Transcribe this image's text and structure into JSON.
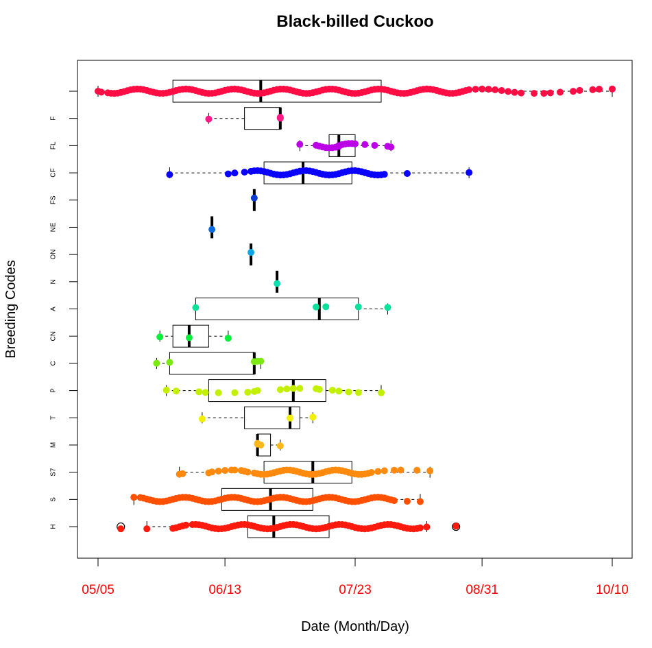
{
  "chart_data": {
    "type": "boxplot",
    "title": "Black-billed Cuckoo",
    "xlabel": "Date (Month/Day)",
    "ylabel": "Breeding Codes",
    "x_tick_labels": [
      "05/05",
      "06/13",
      "07/23",
      "08/31",
      "10/10"
    ],
    "x_tick_days": [
      0,
      39,
      79,
      118,
      158
    ],
    "x_tick_color": "#ff0000",
    "xlim_days": [
      -6,
      164
    ],
    "orientation": "horizontal",
    "grid": false,
    "legend": "none",
    "categories": [
      "",
      "F",
      "FL",
      "CF",
      "FS",
      "NE",
      "ON",
      "N",
      "A",
      "CN",
      "C",
      "P",
      "T",
      "M",
      "S7",
      "S",
      "H"
    ],
    "series": [
      {
        "code": "",
        "color": "#ff0d44",
        "stats": {
          "whisker_low": 0,
          "q1": 23,
          "median": 50,
          "q3": 87,
          "whisker_high": 158
        },
        "points": [
          0,
          1,
          3,
          4,
          5,
          6,
          7,
          8,
          9,
          10,
          11,
          12,
          13,
          14,
          15,
          16,
          17,
          18,
          19,
          20,
          21,
          22,
          23,
          24,
          25,
          26,
          27,
          28,
          29,
          30,
          31,
          32,
          33,
          34,
          35,
          36,
          37,
          38,
          39,
          40,
          41,
          42,
          43,
          44,
          45,
          46,
          47,
          48,
          49,
          50,
          51,
          52,
          53,
          54,
          55,
          56,
          57,
          58,
          59,
          60,
          61,
          62,
          63,
          64,
          65,
          66,
          67,
          68,
          69,
          70,
          71,
          72,
          73,
          74,
          75,
          76,
          77,
          78,
          79,
          80,
          81,
          82,
          83,
          84,
          85,
          86,
          87,
          88,
          89,
          90,
          91,
          92,
          93,
          94,
          95,
          96,
          97,
          98,
          99,
          100,
          101,
          102,
          103,
          104,
          105,
          106,
          107,
          108,
          109,
          110,
          111,
          112,
          113,
          114,
          116,
          118,
          120,
          122,
          124,
          126,
          128,
          130,
          134,
          137,
          139,
          142,
          146,
          148,
          152,
          154,
          158
        ]
      },
      {
        "code": "F",
        "color": "#ff1a88",
        "stats": {
          "whisker_low": 34,
          "q1": 45,
          "median": 56,
          "q3": 56,
          "whisker_high": 56
        },
        "points": [
          34,
          56,
          56
        ]
      },
      {
        "code": "FL",
        "color": "#bb00e8",
        "stats": {
          "whisker_low": 62,
          "q1": 71,
          "median": 74,
          "q3": 79,
          "whisker_high": 90
        },
        "points": [
          62,
          67,
          68,
          69,
          70,
          71,
          72,
          73,
          74,
          74,
          75,
          76,
          77,
          78,
          79,
          82,
          85,
          89,
          90
        ]
      },
      {
        "code": "CF",
        "color": "#0a00ff",
        "stats": {
          "whisker_low": 22,
          "q1": 51,
          "median": 63,
          "q3": 78,
          "whisker_high": 114
        },
        "points": [
          22,
          40,
          42,
          45,
          47,
          48,
          49,
          50,
          51,
          52,
          53,
          54,
          55,
          56,
          57,
          58,
          59,
          60,
          61,
          62,
          63,
          64,
          65,
          66,
          67,
          68,
          69,
          70,
          71,
          72,
          73,
          74,
          75,
          76,
          77,
          78,
          79,
          80,
          81,
          82,
          83,
          84,
          85,
          86,
          87,
          88,
          95,
          114
        ]
      },
      {
        "code": "FS",
        "color": "#0a3bd6",
        "stats": {
          "whisker_low": 48,
          "q1": 48,
          "median": 48,
          "q3": 48,
          "whisker_high": 48
        },
        "points": [
          48
        ]
      },
      {
        "code": "NE",
        "color": "#0a6bdf",
        "stats": {
          "whisker_low": 35,
          "q1": 35,
          "median": 35,
          "q3": 35,
          "whisker_high": 35
        },
        "points": [
          35
        ]
      },
      {
        "code": "ON",
        "color": "#0aa6e6",
        "stats": {
          "whisker_low": 47,
          "q1": 47,
          "median": 47,
          "q3": 47,
          "whisker_high": 47
        },
        "points": [
          47
        ]
      },
      {
        "code": "N",
        "color": "#0ae0b0",
        "stats": {
          "whisker_low": 55,
          "q1": 55,
          "median": 55,
          "q3": 55,
          "whisker_high": 55
        },
        "points": [
          55
        ]
      },
      {
        "code": "A",
        "color": "#0ae09a",
        "stats": {
          "whisker_low": 30,
          "q1": 30,
          "median": 68,
          "q3": 80,
          "whisker_high": 89
        },
        "points": [
          30,
          67,
          70,
          80,
          89
        ]
      },
      {
        "code": "CN",
        "color": "#0aef3c",
        "stats": {
          "whisker_low": 19,
          "q1": 23,
          "median": 28,
          "q3": 34,
          "whisker_high": 40
        },
        "points": [
          19,
          28,
          40
        ]
      },
      {
        "code": "C",
        "color": "#7bea10",
        "stats": {
          "whisker_low": 18,
          "q1": 22,
          "median": 48,
          "q3": 48,
          "whisker_high": 50
        },
        "points": [
          18,
          22,
          48,
          49,
          50
        ]
      },
      {
        "code": "P",
        "color": "#c3f000",
        "stats": {
          "whisker_low": 21,
          "q1": 34,
          "median": 60,
          "q3": 70,
          "whisker_high": 87
        },
        "points": [
          21,
          24,
          31,
          33,
          37,
          42,
          46,
          48,
          49,
          56,
          58,
          60,
          62,
          67,
          68,
          72,
          74,
          77,
          80,
          87
        ]
      },
      {
        "code": "T",
        "color": "#f2f000",
        "stats": {
          "whisker_low": 32,
          "q1": 45,
          "median": 59,
          "q3": 62,
          "whisker_high": 66
        },
        "points": [
          32,
          59,
          66
        ]
      },
      {
        "code": "M",
        "color": "#ffb81a",
        "stats": {
          "whisker_low": 49,
          "q1": 49,
          "median": 49,
          "q3": 53,
          "whisker_high": 56
        },
        "points": [
          49,
          49,
          50,
          56
        ]
      },
      {
        "code": "S7",
        "color": "#ff8a0d",
        "stats": {
          "whisker_low": 25,
          "q1": 51,
          "median": 66,
          "q3": 78,
          "whisker_high": 102
        },
        "points": [
          25,
          26,
          34,
          35,
          37,
          39,
          41,
          42,
          44,
          45,
          46,
          48,
          49,
          50,
          51,
          52,
          53,
          54,
          55,
          56,
          57,
          58,
          59,
          60,
          61,
          62,
          63,
          64,
          65,
          66,
          67,
          68,
          69,
          70,
          71,
          72,
          73,
          74,
          75,
          76,
          77,
          78,
          79,
          80,
          81,
          82,
          83,
          84,
          86,
          88,
          91,
          93,
          98,
          102
        ]
      },
      {
        "code": "S",
        "color": "#ff5000",
        "stats": {
          "whisker_low": 11,
          "q1": 38,
          "median": 53,
          "q3": 66,
          "whisker_high": 99
        },
        "points": [
          11,
          13,
          14,
          15,
          16,
          17,
          18,
          19,
          20,
          21,
          22,
          23,
          24,
          25,
          26,
          27,
          28,
          29,
          30,
          31,
          32,
          33,
          34,
          35,
          36,
          37,
          38,
          39,
          40,
          41,
          42,
          43,
          44,
          45,
          46,
          47,
          48,
          49,
          50,
          51,
          52,
          53,
          54,
          55,
          56,
          57,
          58,
          59,
          60,
          61,
          62,
          63,
          64,
          65,
          66,
          67,
          68,
          69,
          70,
          71,
          72,
          73,
          74,
          75,
          76,
          77,
          78,
          79,
          80,
          81,
          82,
          83,
          84,
          85,
          86,
          87,
          88,
          89,
          90,
          91,
          95,
          99
        ]
      },
      {
        "code": "H",
        "color": "#ff1a0d",
        "stats": {
          "whisker_low": 15,
          "q1": 46,
          "median": 54,
          "q3": 71,
          "whisker_high": 101,
          "outliers": [
            7,
            110
          ]
        },
        "points": [
          7,
          15,
          23,
          24,
          25,
          26,
          27,
          29,
          30,
          31,
          32,
          33,
          34,
          35,
          36,
          37,
          38,
          39,
          40,
          41,
          42,
          43,
          44,
          45,
          46,
          47,
          48,
          49,
          50,
          51,
          52,
          53,
          54,
          55,
          56,
          57,
          58,
          59,
          60,
          61,
          62,
          63,
          64,
          65,
          66,
          67,
          68,
          69,
          70,
          71,
          72,
          73,
          74,
          75,
          76,
          77,
          78,
          79,
          80,
          81,
          82,
          83,
          84,
          85,
          86,
          87,
          88,
          89,
          90,
          91,
          92,
          93,
          94,
          95,
          96,
          97,
          98,
          99,
          101,
          110
        ]
      }
    ]
  }
}
